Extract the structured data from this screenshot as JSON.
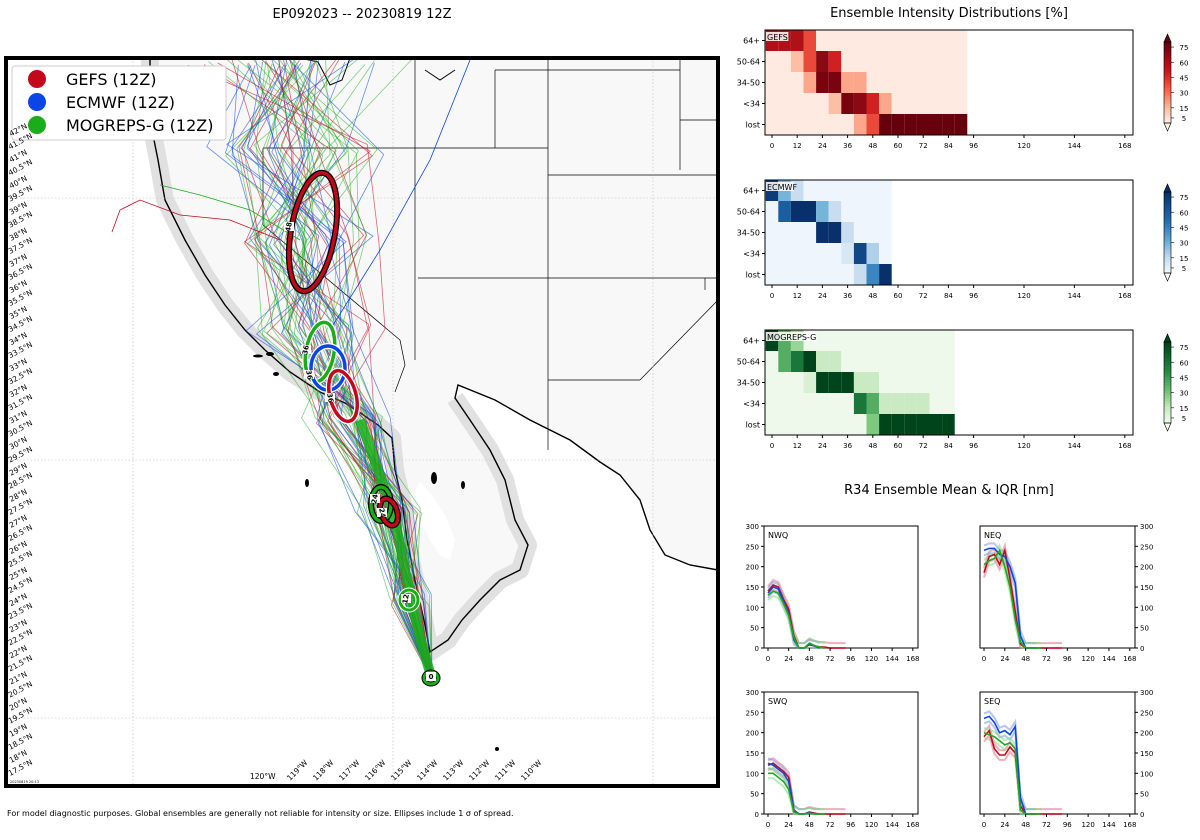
{
  "title": "EP092023 -- 20230819 12Z",
  "footer_note": "For model diagnostic purposes. Global ensembles are generally not reliable for intensity or size. Ellipses include 1 σ of spread.",
  "map": {
    "stamp": "20230819 20:13",
    "legend": [
      {
        "label": "GEFS (12Z)",
        "color": "#c4081c"
      },
      {
        "label": "ECMWF (12Z)",
        "color": "#0a46e6"
      },
      {
        "label": "MOGREPS-G (12Z)",
        "color": "#19ad19"
      }
    ],
    "lat_labels": [
      "17.5°N",
      "18°N",
      "18.5°N",
      "19°N",
      "19.5°N",
      "20°N",
      "20.5°N",
      "21°N",
      "21.5°N",
      "22°N",
      "22.5°N",
      "23°N",
      "23.5°N",
      "24°N",
      "24.5°N",
      "25°N",
      "25.5°N",
      "26°N",
      "26.5°N",
      "27°N",
      "27.5°N",
      "28°N",
      "28.5°N",
      "29°N",
      "29.5°N",
      "30°N",
      "30.5°N",
      "31°N",
      "31.5°N",
      "32°N",
      "32.5°N",
      "33°N",
      "33.5°N",
      "34°N",
      "34.5°N",
      "35°N",
      "35.5°N",
      "36°N",
      "36.5°N",
      "37°N",
      "37.5°N",
      "38°N",
      "38.5°N",
      "39°N",
      "39.5°N",
      "40°N",
      "40.5°N",
      "41°N",
      "41.5°N",
      "42°N"
    ],
    "lon_labels": [
      "120°W",
      "119°W",
      "118°W",
      "117°W",
      "116°W",
      "115°W",
      "114°W",
      "113°W",
      "112°W",
      "111°W",
      "110°W"
    ],
    "ellipse_labels": [
      {
        "model": "GEFS",
        "hour": "48"
      },
      {
        "model": "MOGREPS-G",
        "hour": "36"
      },
      {
        "model": "ECMWF",
        "hour": "36"
      },
      {
        "model": "GEFS",
        "hour": "36"
      },
      {
        "model": "MOGREPS-G",
        "hour": "24"
      },
      {
        "model": "GEFS",
        "hour": "24"
      },
      {
        "model": "ECMWF",
        "hour": "12"
      },
      {
        "model": "MOGREPS-G",
        "hour": "0"
      }
    ]
  },
  "chart_data": [
    {
      "type": "heatmap",
      "title": "Ensemble Intensity Distributions [%]",
      "model": "GEFS",
      "rows": [
        "64+",
        "50-64",
        "34-50",
        "<34",
        "lost"
      ],
      "x_ticks": [
        0,
        12,
        24,
        36,
        48,
        60,
        72,
        84,
        96,
        120,
        144,
        168
      ],
      "colorbar_ticks": [
        5,
        15,
        30,
        45,
        60,
        75
      ],
      "values": [
        [
          60,
          60,
          60,
          40,
          3,
          3,
          3,
          3,
          3,
          3,
          3,
          3,
          3,
          3,
          3,
          3
        ],
        [
          3,
          3,
          15,
          40,
          70,
          50,
          3,
          3,
          3,
          3,
          3,
          3,
          3,
          3,
          3,
          3
        ],
        [
          3,
          3,
          3,
          20,
          75,
          75,
          20,
          20,
          3,
          3,
          3,
          3,
          3,
          3,
          3,
          3
        ],
        [
          3,
          3,
          3,
          3,
          3,
          15,
          75,
          70,
          50,
          20,
          3,
          3,
          3,
          3,
          3,
          3
        ],
        [
          3,
          3,
          3,
          3,
          3,
          3,
          3,
          20,
          40,
          100,
          100,
          100,
          100,
          100,
          100,
          100
        ]
      ]
    },
    {
      "type": "heatmap",
      "model": "ECMWF",
      "rows": [
        "64+",
        "50-64",
        "34-50",
        "<34",
        "lost"
      ],
      "x_ticks": [
        0,
        12,
        24,
        36,
        48,
        60,
        72,
        84,
        96,
        120,
        144,
        168
      ],
      "colorbar_ticks": [
        5,
        15,
        30,
        45,
        60,
        75
      ],
      "values": [
        [
          75,
          30,
          15,
          3,
          3,
          3,
          3,
          3,
          3,
          3
        ],
        [
          3,
          60,
          100,
          100,
          30,
          15,
          3,
          3,
          3,
          3
        ],
        [
          3,
          3,
          3,
          3,
          100,
          100,
          15,
          3,
          3,
          3
        ],
        [
          3,
          3,
          3,
          3,
          3,
          3,
          10,
          70,
          20,
          3
        ],
        [
          3,
          3,
          3,
          3,
          3,
          3,
          3,
          15,
          45,
          100
        ]
      ]
    },
    {
      "type": "heatmap",
      "model": "MOGREPS-G",
      "rows": [
        "64+",
        "50-64",
        "34-50",
        "<34",
        "lost"
      ],
      "x_ticks": [
        0,
        12,
        24,
        36,
        48,
        60,
        72,
        84,
        96,
        120,
        144,
        168
      ],
      "colorbar_ticks": [
        5,
        15,
        30,
        45,
        60,
        75
      ],
      "values": [
        [
          100,
          40,
          25,
          3,
          3,
          3,
          3,
          3,
          3,
          3,
          3,
          3,
          3,
          3,
          3
        ],
        [
          3,
          40,
          60,
          100,
          15,
          15,
          3,
          3,
          3,
          3,
          3,
          3,
          3,
          3,
          3
        ],
        [
          3,
          3,
          3,
          10,
          100,
          100,
          100,
          15,
          15,
          3,
          3,
          3,
          3,
          3,
          3
        ],
        [
          3,
          3,
          3,
          3,
          3,
          3,
          3,
          60,
          40,
          15,
          15,
          15,
          15,
          3,
          3
        ],
        [
          3,
          3,
          3,
          3,
          3,
          3,
          3,
          3,
          30,
          80,
          100,
          100,
          100,
          100,
          100
        ]
      ]
    },
    {
      "type": "line",
      "title": "R34 Ensemble Mean & IQR [nm]",
      "quadrant": "NWQ",
      "x_ticks": [
        0,
        24,
        48,
        72,
        96,
        120,
        144,
        168
      ],
      "y_ticks": [
        0,
        50,
        100,
        150,
        200,
        250,
        300
      ],
      "xlim": [
        0,
        174
      ],
      "ylim": [
        0,
        300
      ],
      "series": [
        {
          "model": "GEFS",
          "x": [
            0,
            6,
            12,
            18,
            24,
            30,
            36,
            42,
            48,
            54,
            60,
            66,
            72,
            78,
            84,
            90
          ],
          "y": [
            140,
            155,
            150,
            120,
            95,
            30,
            0,
            0,
            8,
            5,
            3,
            2,
            0,
            0,
            0,
            0
          ]
        },
        {
          "model": "ECMWF",
          "x": [
            0,
            6,
            12,
            18,
            24,
            30,
            36,
            42,
            48,
            54,
            60
          ],
          "y": [
            135,
            150,
            145,
            115,
            85,
            20,
            0,
            0,
            10,
            5,
            0
          ]
        },
        {
          "model": "MOGREPS-G",
          "x": [
            0,
            6,
            12,
            18,
            24,
            30,
            36,
            42,
            48,
            54,
            60,
            66
          ],
          "y": [
            130,
            140,
            135,
            110,
            80,
            25,
            0,
            0,
            12,
            6,
            2,
            0
          ]
        }
      ]
    },
    {
      "type": "line",
      "quadrant": "NEQ",
      "x_ticks": [
        0,
        24,
        48,
        72,
        96,
        120,
        144,
        168
      ],
      "y_ticks": [
        0,
        50,
        100,
        150,
        200,
        250,
        300
      ],
      "xlim": [
        0,
        174
      ],
      "ylim": [
        0,
        300
      ],
      "series": [
        {
          "model": "GEFS",
          "x": [
            0,
            6,
            12,
            18,
            24,
            30,
            36,
            42,
            48,
            54,
            60,
            66,
            72,
            78,
            84,
            90
          ],
          "y": [
            185,
            225,
            230,
            205,
            240,
            170,
            90,
            10,
            0,
            0,
            0,
            0,
            0,
            0,
            0,
            0
          ]
        },
        {
          "model": "ECMWF",
          "x": [
            0,
            6,
            12,
            18,
            24,
            30,
            36,
            42,
            48,
            54,
            60
          ],
          "y": [
            240,
            245,
            245,
            230,
            225,
            200,
            160,
            30,
            0,
            0,
            0
          ]
        },
        {
          "model": "MOGREPS-G",
          "x": [
            0,
            6,
            12,
            18,
            24,
            30,
            36,
            42,
            48,
            54,
            60,
            66
          ],
          "y": [
            205,
            215,
            220,
            240,
            200,
            150,
            70,
            15,
            0,
            0,
            0,
            0
          ]
        }
      ]
    },
    {
      "type": "line",
      "quadrant": "SWQ",
      "x_ticks": [
        0,
        24,
        48,
        72,
        96,
        120,
        144,
        168
      ],
      "y_ticks": [
        0,
        50,
        100,
        150,
        200,
        250,
        300
      ],
      "xlim": [
        0,
        174
      ],
      "ylim": [
        0,
        300
      ],
      "series": [
        {
          "model": "GEFS",
          "x": [
            0,
            6,
            12,
            18,
            24,
            30,
            36,
            42,
            48,
            54,
            60,
            66,
            72,
            78,
            84,
            90
          ],
          "y": [
            120,
            125,
            115,
            105,
            90,
            10,
            0,
            0,
            5,
            2,
            0,
            0,
            0,
            0,
            0,
            0
          ]
        },
        {
          "model": "ECMWF",
          "x": [
            0,
            6,
            12,
            18,
            24,
            30,
            36,
            42,
            48,
            54,
            60
          ],
          "y": [
            125,
            120,
            110,
            100,
            80,
            8,
            0,
            0,
            3,
            0,
            0
          ]
        },
        {
          "model": "MOGREPS-G",
          "x": [
            0,
            6,
            12,
            18,
            24,
            30,
            36,
            42,
            48,
            54,
            60,
            66
          ],
          "y": [
            100,
            100,
            90,
            80,
            60,
            5,
            0,
            0,
            2,
            0,
            0,
            0
          ]
        }
      ]
    },
    {
      "type": "line",
      "quadrant": "SEQ",
      "x_ticks": [
        0,
        24,
        48,
        72,
        96,
        120,
        144,
        168
      ],
      "y_ticks": [
        0,
        50,
        100,
        150,
        200,
        250,
        300
      ],
      "xlim": [
        0,
        174
      ],
      "ylim": [
        0,
        300
      ],
      "series": [
        {
          "model": "GEFS",
          "x": [
            0,
            6,
            12,
            18,
            24,
            30,
            36,
            42,
            48,
            54,
            60,
            66,
            72,
            78,
            84,
            90
          ],
          "y": [
            190,
            205,
            160,
            145,
            145,
            165,
            150,
            20,
            0,
            0,
            0,
            0,
            0,
            0,
            0,
            0
          ]
        },
        {
          "model": "ECMWF",
          "x": [
            0,
            6,
            12,
            18,
            24,
            30,
            36,
            42,
            48,
            54,
            60
          ],
          "y": [
            235,
            240,
            225,
            200,
            205,
            195,
            215,
            40,
            0,
            0,
            0
          ]
        },
        {
          "model": "MOGREPS-G",
          "x": [
            0,
            6,
            12,
            18,
            24,
            30,
            36,
            42,
            48,
            54,
            60,
            66
          ],
          "y": [
            200,
            195,
            190,
            180,
            170,
            175,
            160,
            10,
            0,
            0,
            0,
            0
          ]
        }
      ]
    }
  ]
}
